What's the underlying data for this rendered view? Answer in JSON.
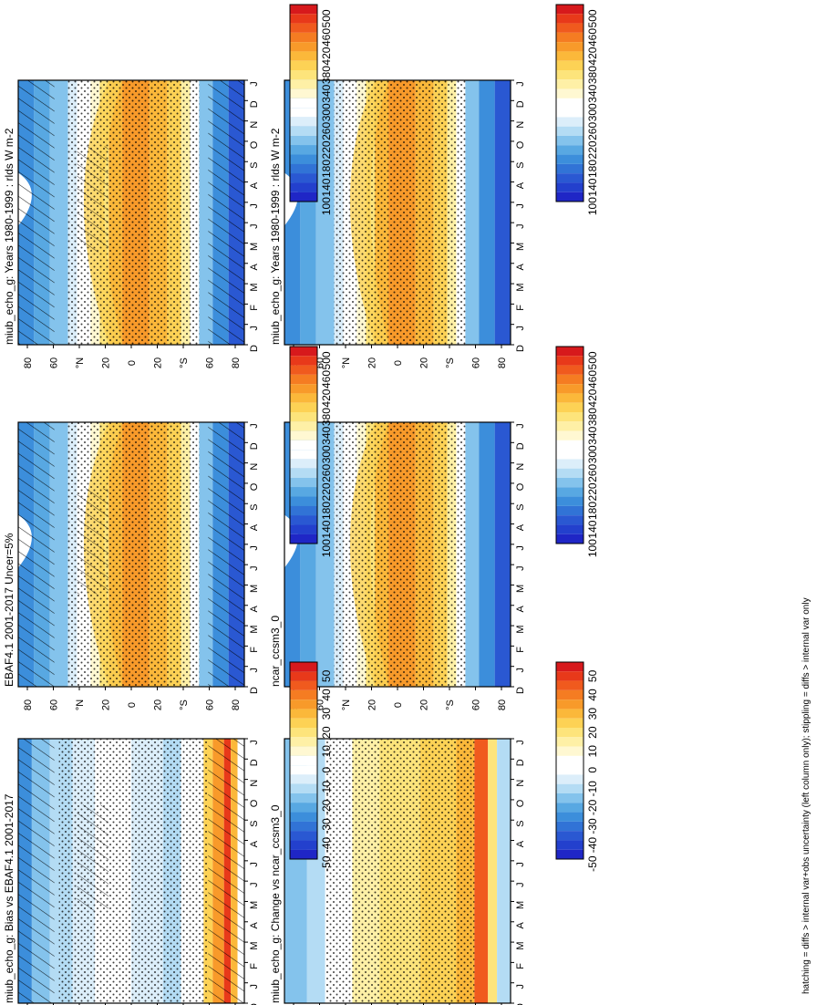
{
  "figure_note": "hatching = diffs > internal var+obs uncertainty (left column only); stippling = diffs > internal var only",
  "units_label": "rlds W m",
  "units_sup": "-2",
  "months": [
    "D",
    "J",
    "F",
    "M",
    "A",
    "M",
    "J",
    "J",
    "A",
    "S",
    "O",
    "N",
    "D",
    "J"
  ],
  "lat_ticks": [
    "80",
    "60",
    "°N",
    "20",
    "0",
    "20",
    "°S",
    "60",
    "80"
  ],
  "colorbars": {
    "abs": {
      "labels": [
        "500",
        "460",
        "420",
        "380",
        "340",
        "300",
        "260",
        "220",
        "180",
        "140",
        "100"
      ],
      "colors": [
        "#d7191c",
        "#e8391a",
        "#f05a1e",
        "#f57c22",
        "#f89a2a",
        "#fbb83a",
        "#fdd255",
        "#fde47b",
        "#fef0a6",
        "#fff8d2",
        "#ffffff",
        "#ffffff",
        "#dceefa",
        "#b4dcf4",
        "#84c3ec",
        "#58a8e2",
        "#3c8edb",
        "#3173d6",
        "#2a58d2",
        "#2340cd",
        "#1f26c6"
      ]
    },
    "diff": {
      "labels": [
        "50",
        "40",
        "30",
        "20",
        "10",
        "0",
        "-10",
        "-20",
        "-30",
        "-40",
        "-50"
      ],
      "colors": [
        "#d7191c",
        "#e8391a",
        "#f05a1e",
        "#f57c22",
        "#f89a2a",
        "#fbb83a",
        "#fdd255",
        "#fde47b",
        "#fef0a6",
        "#fff8d2",
        "#ffffff",
        "#ffffff",
        "#dceefa",
        "#b4dcf4",
        "#84c3ec",
        "#58a8e2",
        "#3c8edb",
        "#3173d6",
        "#2a58d2",
        "#2340cd",
        "#1f26c6"
      ]
    }
  },
  "chart_data": [
    {
      "type": "heatmap",
      "panel": "left-top",
      "title": "miub_echo_g: Years 1980-1999 : rlds W m-2",
      "x": "month",
      "y": "latitude",
      "colorbar": "abs",
      "hatching": true,
      "stippling": true
    },
    {
      "type": "heatmap",
      "panel": "left-middle",
      "title": "EBAF4.1 2001-2017 Uncer=5%",
      "x": "month",
      "y": "latitude",
      "colorbar": "abs",
      "hatching": true,
      "stippling": true
    },
    {
      "type": "heatmap",
      "panel": "left-bottom",
      "title": "miub_echo_g: Bias vs EBAF4.1 2001-2017",
      "x": "month",
      "y": "latitude",
      "colorbar": "diff",
      "hatching": true,
      "stippling": true
    },
    {
      "type": "heatmap",
      "panel": "right-top",
      "title": "miub_echo_g: Years 1980-1999 : rlds W m-2",
      "x": "month",
      "y": "latitude",
      "colorbar": "abs",
      "hatching": false,
      "stippling": true
    },
    {
      "type": "heatmap",
      "panel": "right-middle",
      "title": "ncar_ccsm3_0",
      "x": "month",
      "y": "latitude",
      "colorbar": "abs",
      "hatching": false,
      "stippling": true
    },
    {
      "type": "heatmap",
      "panel": "right-bottom",
      "title": "miub_echo_g: Change vs ncar_ccsm3_0",
      "x": "month",
      "y": "latitude",
      "colorbar": "diff",
      "hatching": false,
      "stippling": true
    }
  ]
}
